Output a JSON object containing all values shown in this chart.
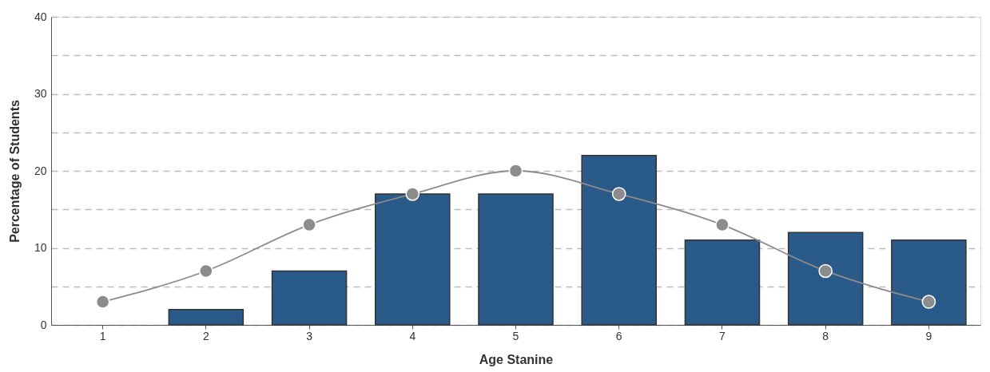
{
  "chart_data": {
    "type": "bar",
    "xlabel": "Age Stanine",
    "ylabel": "Percentage of Students",
    "categories": [
      "1",
      "2",
      "3",
      "4",
      "5",
      "6",
      "7",
      "8",
      "9"
    ],
    "series": [
      {
        "color": "#2a5a87",
        "values": [
          null,
          2,
          7,
          17,
          17,
          22,
          11,
          12,
          11
        ]
      },
      {
        "type": "line",
        "color": "#8c8c8c",
        "marker": "circle",
        "line_style": "solid",
        "values": [
          3,
          7,
          13,
          17,
          20,
          17,
          13,
          7,
          3
        ]
      }
    ],
    "ylim": [
      0,
      40
    ],
    "yticks": [
      0,
      {
        "value": 5,
        "label": null
      },
      10,
      {
        "value": 15,
        "label": null
      },
      20,
      {
        "value": 25,
        "label": null
      },
      30,
      {
        "value": 35,
        "label": null
      },
      40
    ],
    "grid": "y"
  }
}
